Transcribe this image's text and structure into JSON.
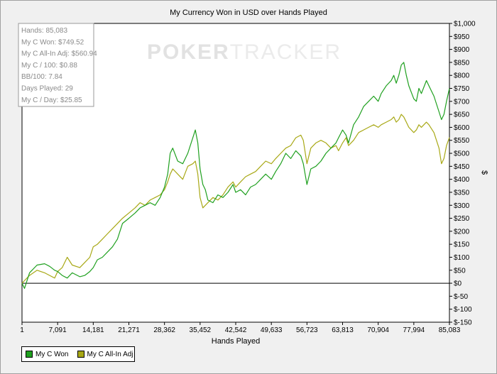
{
  "chart_data": {
    "type": "line",
    "title": "My Currency Won in USD over Hands Played",
    "xlabel": "Hands Played",
    "ylabel": "$",
    "xlim": [
      1,
      85083
    ],
    "ylim": [
      -150,
      1000
    ],
    "x_ticks": [
      1,
      7091,
      14181,
      21271,
      28362,
      35452,
      42542,
      49633,
      56723,
      63813,
      70904,
      77994,
      85083
    ],
    "x_tick_labels": [
      "1",
      "7,091",
      "14,181",
      "21,271",
      "28,362",
      "35,452",
      "42,542",
      "49,633",
      "56,723",
      "63,813",
      "70,904",
      "77,994",
      "85,083"
    ],
    "y_ticks": [
      -150,
      -100,
      -50,
      0,
      50,
      100,
      150,
      200,
      250,
      300,
      350,
      400,
      450,
      500,
      550,
      600,
      650,
      700,
      750,
      800,
      850,
      900,
      950,
      1000
    ],
    "y_tick_labels": [
      "$-150",
      "$-100",
      "$-50",
      "$0",
      "$50",
      "$100",
      "$150",
      "$200",
      "$250",
      "$300",
      "$350",
      "$400",
      "$450",
      "$500",
      "$550",
      "$600",
      "$650",
      "$700",
      "$750",
      "$800",
      "$850",
      "$900",
      "$950",
      "$1,000"
    ],
    "zero_line": true,
    "grid": false,
    "legend_position": "bottom-left",
    "watermark": {
      "part1": "POKER",
      "part2": "TRACKER"
    },
    "stats_box": [
      "Hands: 85,083",
      "My C Won: $749.52",
      "My C All-In Adj: $560.94",
      "My C / 100: $0.88",
      "BB/100: 7.84",
      "Days Played: 29",
      "My C / Day: $25.85"
    ],
    "series": [
      {
        "name": "My C Won",
        "color": "#1fa01f",
        "points": [
          [
            1,
            0
          ],
          [
            500,
            -20
          ],
          [
            1500,
            40
          ],
          [
            3000,
            70
          ],
          [
            4500,
            75
          ],
          [
            5500,
            65
          ],
          [
            6500,
            50
          ],
          [
            7091,
            45
          ],
          [
            8000,
            30
          ],
          [
            9000,
            20
          ],
          [
            10000,
            40
          ],
          [
            11500,
            25
          ],
          [
            12500,
            30
          ],
          [
            13500,
            45
          ],
          [
            14181,
            60
          ],
          [
            15000,
            90
          ],
          [
            16000,
            100
          ],
          [
            17000,
            120
          ],
          [
            18000,
            140
          ],
          [
            19000,
            170
          ],
          [
            20000,
            230
          ],
          [
            21271,
            250
          ],
          [
            22500,
            270
          ],
          [
            23500,
            290
          ],
          [
            24500,
            300
          ],
          [
            25500,
            310
          ],
          [
            26500,
            300
          ],
          [
            27500,
            330
          ],
          [
            28362,
            370
          ],
          [
            29000,
            420
          ],
          [
            29500,
            500
          ],
          [
            30000,
            520
          ],
          [
            31000,
            470
          ],
          [
            32000,
            460
          ],
          [
            33000,
            500
          ],
          [
            34000,
            560
          ],
          [
            34500,
            590
          ],
          [
            35000,
            540
          ],
          [
            35452,
            440
          ],
          [
            36000,
            380
          ],
          [
            36500,
            360
          ],
          [
            37000,
            320
          ],
          [
            38000,
            310
          ],
          [
            39000,
            340
          ],
          [
            40000,
            330
          ],
          [
            41000,
            350
          ],
          [
            42000,
            380
          ],
          [
            42542,
            350
          ],
          [
            43500,
            360
          ],
          [
            44500,
            340
          ],
          [
            45500,
            370
          ],
          [
            46500,
            380
          ],
          [
            47500,
            400
          ],
          [
            48500,
            420
          ],
          [
            49633,
            400
          ],
          [
            50500,
            430
          ],
          [
            51500,
            460
          ],
          [
            52500,
            500
          ],
          [
            53500,
            480
          ],
          [
            54500,
            510
          ],
          [
            55500,
            490
          ],
          [
            56000,
            460
          ],
          [
            56723,
            380
          ],
          [
            57500,
            440
          ],
          [
            58500,
            450
          ],
          [
            59500,
            470
          ],
          [
            60500,
            500
          ],
          [
            61500,
            520
          ],
          [
            62500,
            540
          ],
          [
            63000,
            560
          ],
          [
            63813,
            590
          ],
          [
            64500,
            570
          ],
          [
            65000,
            540
          ],
          [
            66000,
            610
          ],
          [
            67000,
            640
          ],
          [
            68000,
            680
          ],
          [
            69000,
            700
          ],
          [
            70000,
            720
          ],
          [
            70904,
            700
          ],
          [
            71500,
            730
          ],
          [
            72500,
            760
          ],
          [
            73500,
            780
          ],
          [
            74000,
            800
          ],
          [
            74500,
            770
          ],
          [
            75000,
            800
          ],
          [
            75500,
            840
          ],
          [
            76000,
            850
          ],
          [
            76500,
            800
          ],
          [
            77000,
            760
          ],
          [
            77994,
            710
          ],
          [
            78500,
            700
          ],
          [
            79000,
            750
          ],
          [
            79500,
            730
          ],
          [
            80500,
            780
          ],
          [
            81000,
            760
          ],
          [
            82000,
            720
          ],
          [
            83000,
            660
          ],
          [
            83500,
            630
          ],
          [
            84000,
            650
          ],
          [
            84500,
            700
          ],
          [
            85083,
            750
          ]
        ]
      },
      {
        "name": "My C All-In Adj",
        "color": "#a8a815",
        "points": [
          [
            1,
            0
          ],
          [
            500,
            10
          ],
          [
            1500,
            30
          ],
          [
            3000,
            50
          ],
          [
            4500,
            40
          ],
          [
            5500,
            30
          ],
          [
            6500,
            20
          ],
          [
            7091,
            45
          ],
          [
            8000,
            60
          ],
          [
            9000,
            100
          ],
          [
            10000,
            70
          ],
          [
            11500,
            60
          ],
          [
            12500,
            80
          ],
          [
            13500,
            100
          ],
          [
            14181,
            140
          ],
          [
            15000,
            150
          ],
          [
            16000,
            170
          ],
          [
            17000,
            190
          ],
          [
            18000,
            210
          ],
          [
            19000,
            230
          ],
          [
            20000,
            250
          ],
          [
            21271,
            270
          ],
          [
            22500,
            290
          ],
          [
            23500,
            310
          ],
          [
            24500,
            300
          ],
          [
            25500,
            320
          ],
          [
            26500,
            330
          ],
          [
            27500,
            340
          ],
          [
            28362,
            360
          ],
          [
            29000,
            390
          ],
          [
            29500,
            420
          ],
          [
            30000,
            440
          ],
          [
            31000,
            420
          ],
          [
            32000,
            400
          ],
          [
            33000,
            450
          ],
          [
            34000,
            460
          ],
          [
            34500,
            470
          ],
          [
            35000,
            420
          ],
          [
            35452,
            330
          ],
          [
            36000,
            290
          ],
          [
            36500,
            300
          ],
          [
            37000,
            310
          ],
          [
            38000,
            330
          ],
          [
            39000,
            320
          ],
          [
            40000,
            340
          ],
          [
            41000,
            370
          ],
          [
            42000,
            390
          ],
          [
            42542,
            370
          ],
          [
            43500,
            390
          ],
          [
            44500,
            410
          ],
          [
            45500,
            420
          ],
          [
            46500,
            430
          ],
          [
            47500,
            450
          ],
          [
            48500,
            470
          ],
          [
            49633,
            460
          ],
          [
            50500,
            480
          ],
          [
            51500,
            500
          ],
          [
            52500,
            520
          ],
          [
            53500,
            530
          ],
          [
            54500,
            560
          ],
          [
            55500,
            570
          ],
          [
            56000,
            550
          ],
          [
            56723,
            460
          ],
          [
            57500,
            520
          ],
          [
            58500,
            540
          ],
          [
            59500,
            550
          ],
          [
            60500,
            540
          ],
          [
            61500,
            520
          ],
          [
            62500,
            530
          ],
          [
            63000,
            510
          ],
          [
            63813,
            540
          ],
          [
            64500,
            560
          ],
          [
            65000,
            530
          ],
          [
            66000,
            550
          ],
          [
            67000,
            580
          ],
          [
            68000,
            590
          ],
          [
            69000,
            600
          ],
          [
            70000,
            610
          ],
          [
            70904,
            600
          ],
          [
            71500,
            610
          ],
          [
            72500,
            620
          ],
          [
            73500,
            630
          ],
          [
            74000,
            640
          ],
          [
            74500,
            620
          ],
          [
            75000,
            630
          ],
          [
            75500,
            650
          ],
          [
            76000,
            640
          ],
          [
            76500,
            620
          ],
          [
            77000,
            600
          ],
          [
            77994,
            580
          ],
          [
            78500,
            590
          ],
          [
            79000,
            610
          ],
          [
            79500,
            600
          ],
          [
            80500,
            620
          ],
          [
            81000,
            610
          ],
          [
            82000,
            580
          ],
          [
            83000,
            520
          ],
          [
            83500,
            460
          ],
          [
            84000,
            480
          ],
          [
            84500,
            530
          ],
          [
            85083,
            561
          ]
        ]
      }
    ]
  }
}
